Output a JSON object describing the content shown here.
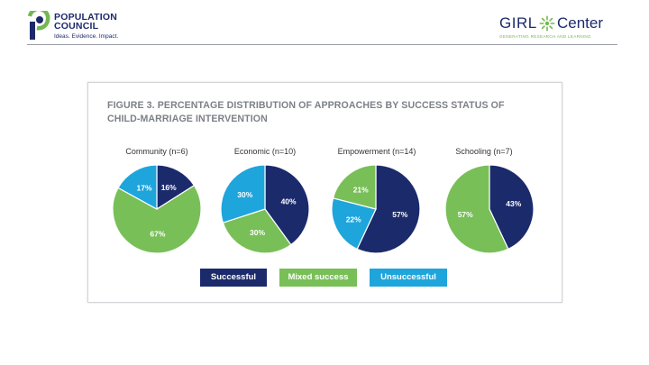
{
  "header": {
    "org_name_line1": "POPULATION",
    "org_name_line2": "COUNCIL",
    "org_tagline": "Ideas. Evidence. Impact.",
    "partner_word1": "GIRL",
    "partner_word2": "Center",
    "partner_tagline": "GENERATING RESEARCH AND LEARNING"
  },
  "colors": {
    "successful": "#1b2a6b",
    "mixed": "#78bf58",
    "unsuccessful": "#1ea5dc",
    "brand_navy": "#1c2a6b",
    "brand_green": "#74b751"
  },
  "chart_data": {
    "type": "pie",
    "title": "FIGURE 3. PERCENTAGE DISTRIBUTION OF APPROACHES BY SUCCESS STATUS OF CHILD-MARRIAGE INTERVENTION",
    "title_line1": "FIGURE 3. PERCENTAGE DISTRIBUTION OF APPROACHES BY SUCCESS STATUS OF",
    "title_line2": "CHILD-MARRIAGE INTERVENTION",
    "legend": [
      "Successful",
      "Mixed success",
      "Unsuccessful"
    ],
    "legend_position": "bottom-center",
    "pies": [
      {
        "name": "Community (n=6)",
        "slices": [
          {
            "category": "Successful",
            "value": 16,
            "label": "16%"
          },
          {
            "category": "Mixed success",
            "value": 67,
            "label": "67%"
          },
          {
            "category": "Unsuccessful",
            "value": 17,
            "label": "17%"
          }
        ]
      },
      {
        "name": "Economic (n=10)",
        "slices": [
          {
            "category": "Successful",
            "value": 40,
            "label": "40%"
          },
          {
            "category": "Mixed success",
            "value": 30,
            "label": "30%"
          },
          {
            "category": "Unsuccessful",
            "value": 30,
            "label": "30%"
          }
        ]
      },
      {
        "name": "Empowerment (n=14)",
        "slices": [
          {
            "category": "Successful",
            "value": 57,
            "label": "57%"
          },
          {
            "category": "Unsuccessful",
            "value": 22,
            "label": "22%"
          },
          {
            "category": "Mixed success",
            "value": 21,
            "label": "21%"
          }
        ]
      },
      {
        "name": "Schooling (n=7)",
        "slices": [
          {
            "category": "Successful",
            "value": 43,
            "label": "43%"
          },
          {
            "category": "Mixed success",
            "value": 57,
            "label": "57%"
          }
        ]
      }
    ]
  }
}
